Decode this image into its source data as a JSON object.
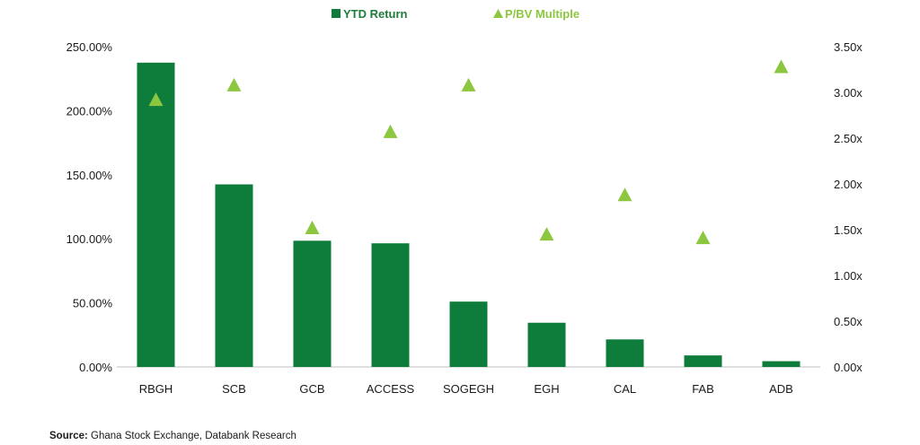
{
  "chart_data": {
    "type": "bar",
    "categories": [
      "RBGH",
      "SCB",
      "GCB",
      "ACCESS",
      "SOGEGH",
      "EGH",
      "CAL",
      "FAB",
      "ADB"
    ],
    "series": [
      {
        "name": "YTD Return",
        "type": "bar",
        "axis": "left",
        "color": "#0e7c3a",
        "values": [
          237.5,
          142.5,
          98.5,
          96.5,
          51.0,
          34.5,
          21.5,
          9.0,
          4.5
        ]
      },
      {
        "name": "P/BV Multiple",
        "type": "scatter",
        "marker": "triangle",
        "axis": "right",
        "color": "#8dc63f",
        "values": [
          2.92,
          3.08,
          1.52,
          2.57,
          3.08,
          1.45,
          1.88,
          1.41,
          3.28
        ]
      }
    ],
    "y_left": {
      "ylim": [
        0,
        250
      ],
      "ticks": [
        0,
        50,
        100,
        150,
        200,
        250
      ],
      "tick_labels": [
        "0.00%",
        "50.00%",
        "100.00%",
        "150.00%",
        "200.00%",
        "250.00%"
      ]
    },
    "y_right": {
      "ylim": [
        0,
        3.5
      ],
      "ticks": [
        0,
        0.5,
        1.0,
        1.5,
        2.0,
        2.5,
        3.0,
        3.5
      ],
      "tick_labels": [
        "0.00x",
        "0.50x",
        "1.00x",
        "1.50x",
        "2.00x",
        "2.50x",
        "3.00x",
        "3.50x"
      ]
    },
    "legend_position": "top-center",
    "grid": false
  },
  "source": {
    "label": "Source:",
    "text": "Ghana Stock Exchange, Databank Research"
  }
}
